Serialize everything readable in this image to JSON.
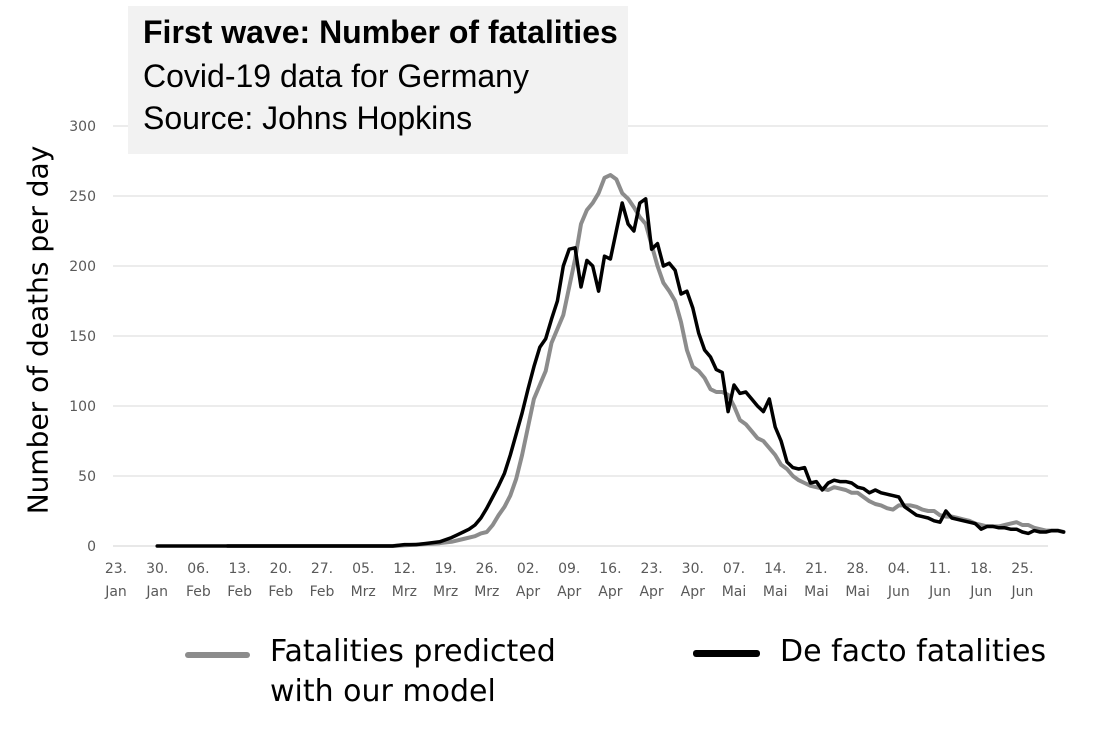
{
  "title": "First wave: Number of fatalities",
  "subtitle": "Covid-19 data for Germany",
  "source": "Source: Johns Hopkins",
  "chart_data": {
    "type": "line",
    "ylabel": "Number of deaths per day",
    "ylim": [
      0,
      300
    ],
    "yticks": [
      0,
      50,
      100,
      150,
      200,
      250,
      300
    ],
    "grid": true,
    "legend_position": "bottom",
    "x_tick_labels": [
      {
        "day": "23.",
        "month": "Jan"
      },
      {
        "day": "30.",
        "month": "Jan"
      },
      {
        "day": "06.",
        "month": "Feb"
      },
      {
        "day": "13.",
        "month": "Feb"
      },
      {
        "day": "20.",
        "month": "Feb"
      },
      {
        "day": "27.",
        "month": "Feb"
      },
      {
        "day": "05.",
        "month": "Mrz"
      },
      {
        "day": "12.",
        "month": "Mrz"
      },
      {
        "day": "19.",
        "month": "Mrz"
      },
      {
        "day": "26.",
        "month": "Mrz"
      },
      {
        "day": "02.",
        "month": "Apr"
      },
      {
        "day": "09.",
        "month": "Apr"
      },
      {
        "day": "16.",
        "month": "Apr"
      },
      {
        "day": "23.",
        "month": "Apr"
      },
      {
        "day": "30.",
        "month": "Apr"
      },
      {
        "day": "07.",
        "month": "Mai"
      },
      {
        "day": "14.",
        "month": "Mai"
      },
      {
        "day": "21.",
        "month": "Mai"
      },
      {
        "day": "28.",
        "month": "Mai"
      },
      {
        "day": "04.",
        "month": "Jun"
      },
      {
        "day": "11.",
        "month": "Jun"
      },
      {
        "day": "18.",
        "month": "Jun"
      },
      {
        "day": "25.",
        "month": "Jun"
      }
    ],
    "series": [
      {
        "name": "Fatalities predicted with our model",
        "legend_lines": [
          "Fatalities predicted",
          "with our model"
        ],
        "color": "#8c8c8c",
        "points": [
          [
            42,
            0
          ],
          [
            49,
            0
          ],
          [
            56,
            0
          ],
          [
            63,
            0
          ],
          [
            70,
            0
          ],
          [
            74,
            1
          ],
          [
            78,
            2
          ],
          [
            80,
            3
          ],
          [
            82,
            5
          ],
          [
            84,
            7
          ],
          [
            85,
            9
          ],
          [
            86,
            10
          ],
          [
            87,
            15
          ],
          [
            88,
            22
          ],
          [
            89,
            28
          ],
          [
            90,
            36
          ],
          [
            91,
            48
          ],
          [
            92,
            65
          ],
          [
            93,
            85
          ],
          [
            94,
            105
          ],
          [
            95,
            115
          ],
          [
            96,
            125
          ],
          [
            97,
            145
          ],
          [
            98,
            155
          ],
          [
            99,
            165
          ],
          [
            100,
            185
          ],
          [
            101,
            205
          ],
          [
            102,
            230
          ],
          [
            103,
            240
          ],
          [
            104,
            245
          ],
          [
            105,
            252
          ],
          [
            106,
            263
          ],
          [
            107,
            265
          ],
          [
            108,
            262
          ],
          [
            109,
            252
          ],
          [
            110,
            248
          ],
          [
            111,
            242
          ],
          [
            112,
            235
          ],
          [
            113,
            230
          ],
          [
            114,
            215
          ],
          [
            115,
            200
          ],
          [
            116,
            188
          ],
          [
            117,
            182
          ],
          [
            118,
            175
          ],
          [
            119,
            160
          ],
          [
            120,
            140
          ],
          [
            121,
            128
          ],
          [
            122,
            125
          ],
          [
            123,
            120
          ],
          [
            124,
            112
          ],
          [
            125,
            110
          ],
          [
            126,
            110
          ],
          [
            127,
            108
          ],
          [
            128,
            100
          ],
          [
            129,
            90
          ],
          [
            130,
            87
          ],
          [
            131,
            82
          ],
          [
            132,
            77
          ],
          [
            133,
            75
          ],
          [
            134,
            70
          ],
          [
            135,
            65
          ],
          [
            136,
            58
          ],
          [
            137,
            55
          ],
          [
            138,
            50
          ],
          [
            139,
            47
          ],
          [
            140,
            45
          ],
          [
            141,
            43
          ],
          [
            142,
            42
          ],
          [
            143,
            41
          ],
          [
            144,
            40
          ],
          [
            145,
            42
          ],
          [
            146,
            41
          ],
          [
            147,
            40
          ],
          [
            148,
            38
          ],
          [
            149,
            38
          ],
          [
            150,
            35
          ],
          [
            151,
            32
          ],
          [
            152,
            30
          ],
          [
            153,
            29
          ],
          [
            154,
            27
          ],
          [
            155,
            26
          ],
          [
            156,
            29
          ],
          [
            157,
            29
          ],
          [
            158,
            29
          ],
          [
            159,
            28
          ],
          [
            160,
            26
          ],
          [
            161,
            25
          ],
          [
            162,
            25
          ],
          [
            163,
            22
          ],
          [
            164,
            21
          ],
          [
            165,
            21
          ],
          [
            166,
            20
          ],
          [
            167,
            19
          ],
          [
            168,
            18
          ],
          [
            169,
            16
          ],
          [
            170,
            15
          ],
          [
            171,
            14
          ],
          [
            172,
            14
          ],
          [
            173,
            14
          ],
          [
            174,
            15
          ],
          [
            175,
            16
          ],
          [
            176,
            17
          ],
          [
            177,
            15
          ],
          [
            178,
            15
          ],
          [
            179,
            13
          ],
          [
            180,
            12
          ],
          [
            181,
            11
          ],
          [
            182,
            11
          ],
          [
            183,
            11
          ],
          [
            184,
            10
          ]
        ]
      },
      {
        "name": "De facto fatalities",
        "legend_lines": [
          "De facto fatalities"
        ],
        "color": "#000000",
        "points": [
          [
            30,
            0
          ],
          [
            32,
            0
          ],
          [
            34,
            0
          ],
          [
            45,
            0
          ],
          [
            70,
            0
          ],
          [
            72,
            1
          ],
          [
            74,
            1
          ],
          [
            76,
            2
          ],
          [
            78,
            3
          ],
          [
            80,
            6
          ],
          [
            81,
            8
          ],
          [
            82,
            10
          ],
          [
            83,
            12
          ],
          [
            84,
            15
          ],
          [
            85,
            20
          ],
          [
            86,
            27
          ],
          [
            87,
            35
          ],
          [
            88,
            43
          ],
          [
            89,
            52
          ],
          [
            90,
            65
          ],
          [
            91,
            80
          ],
          [
            92,
            95
          ],
          [
            93,
            112
          ],
          [
            94,
            128
          ],
          [
            95,
            142
          ],
          [
            96,
            148
          ],
          [
            97,
            162
          ],
          [
            98,
            175
          ],
          [
            99,
            200
          ],
          [
            100,
            212
          ],
          [
            101,
            213
          ],
          [
            102,
            185
          ],
          [
            103,
            204
          ],
          [
            104,
            200
          ],
          [
            105,
            182
          ],
          [
            106,
            207
          ],
          [
            107,
            205
          ],
          [
            108,
            225
          ],
          [
            109,
            245
          ],
          [
            110,
            230
          ],
          [
            111,
            225
          ],
          [
            112,
            245
          ],
          [
            113,
            248
          ],
          [
            114,
            212
          ],
          [
            115,
            216
          ],
          [
            116,
            200
          ],
          [
            117,
            202
          ],
          [
            118,
            197
          ],
          [
            119,
            180
          ],
          [
            120,
            182
          ],
          [
            121,
            170
          ],
          [
            122,
            152
          ],
          [
            123,
            140
          ],
          [
            124,
            135
          ],
          [
            125,
            126
          ],
          [
            126,
            124
          ],
          [
            127,
            96
          ],
          [
            128,
            115
          ],
          [
            129,
            109
          ],
          [
            130,
            110
          ],
          [
            131,
            105
          ],
          [
            132,
            100
          ],
          [
            133,
            96
          ],
          [
            134,
            105
          ],
          [
            135,
            85
          ],
          [
            136,
            75
          ],
          [
            137,
            60
          ],
          [
            138,
            56
          ],
          [
            139,
            55
          ],
          [
            140,
            56
          ],
          [
            141,
            45
          ],
          [
            142,
            46
          ],
          [
            143,
            40
          ],
          [
            144,
            45
          ],
          [
            145,
            47
          ],
          [
            146,
            46
          ],
          [
            147,
            46
          ],
          [
            148,
            45
          ],
          [
            149,
            42
          ],
          [
            150,
            41
          ],
          [
            151,
            38
          ],
          [
            152,
            40
          ],
          [
            153,
            38
          ],
          [
            154,
            37
          ],
          [
            155,
            36
          ],
          [
            156,
            35
          ],
          [
            157,
            28
          ],
          [
            158,
            25
          ],
          [
            159,
            22
          ],
          [
            160,
            21
          ],
          [
            161,
            20
          ],
          [
            162,
            18
          ],
          [
            163,
            17
          ],
          [
            164,
            25
          ],
          [
            165,
            20
          ],
          [
            166,
            19
          ],
          [
            167,
            18
          ],
          [
            168,
            17
          ],
          [
            169,
            16
          ],
          [
            170,
            12
          ],
          [
            171,
            14
          ],
          [
            172,
            14
          ],
          [
            173,
            13
          ],
          [
            174,
            13
          ],
          [
            175,
            12
          ],
          [
            176,
            12
          ],
          [
            177,
            10
          ],
          [
            178,
            9
          ],
          [
            179,
            11
          ],
          [
            180,
            10
          ],
          [
            181,
            10
          ],
          [
            182,
            11
          ],
          [
            183,
            11
          ],
          [
            184,
            10
          ]
        ]
      }
    ]
  }
}
